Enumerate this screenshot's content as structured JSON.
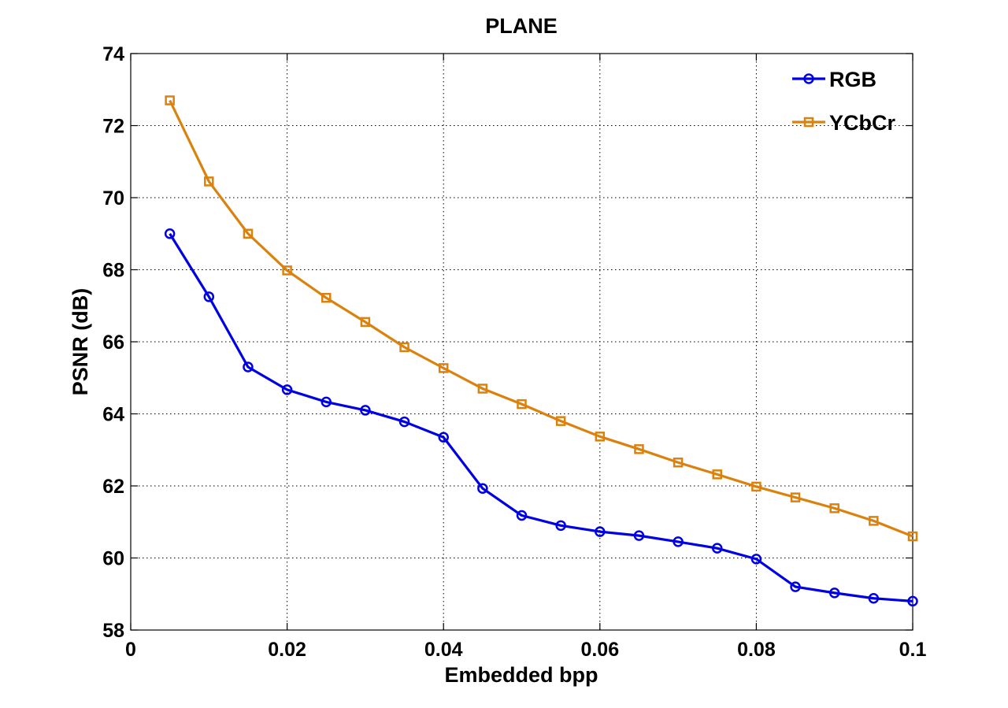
{
  "chart_data": {
    "type": "line",
    "title": "PLANE",
    "xlabel": "Embedded bpp",
    "ylabel": "PSNR (dB)",
    "xlim": [
      0,
      0.1
    ],
    "ylim": [
      58,
      74
    ],
    "xticks": [
      0,
      0.02,
      0.04,
      0.06,
      0.08,
      0.1
    ],
    "xtick_labels": [
      "0",
      "0.02",
      "0.04",
      "0.06",
      "0.08",
      "0.1"
    ],
    "yticks": [
      58,
      60,
      62,
      64,
      66,
      68,
      70,
      72,
      74
    ],
    "ytick_labels": [
      "58",
      "60",
      "62",
      "64",
      "66",
      "68",
      "70",
      "72",
      "74"
    ],
    "grid": true,
    "legend_position": "top-right",
    "x": [
      0.005,
      0.01,
      0.015,
      0.02,
      0.025,
      0.03,
      0.035,
      0.04,
      0.045,
      0.05,
      0.055,
      0.06,
      0.065,
      0.07,
      0.075,
      0.08,
      0.085,
      0.09,
      0.095,
      0.1
    ],
    "series": [
      {
        "name": "RGB",
        "color": "#0000e6",
        "marker": "circle",
        "values": [
          69.0,
          67.25,
          65.3,
          64.67,
          64.33,
          64.1,
          63.78,
          63.35,
          61.93,
          61.18,
          60.9,
          60.73,
          60.62,
          60.45,
          60.27,
          59.97,
          59.2,
          59.03,
          58.88,
          58.8
        ]
      },
      {
        "name": "YCbCr",
        "color": "#db820e",
        "marker": "square",
        "values": [
          72.7,
          70.45,
          69.0,
          67.98,
          67.22,
          66.55,
          65.85,
          65.27,
          64.7,
          64.27,
          63.8,
          63.37,
          63.02,
          62.65,
          62.32,
          61.98,
          61.68,
          61.38,
          61.03,
          60.6
        ]
      }
    ]
  }
}
